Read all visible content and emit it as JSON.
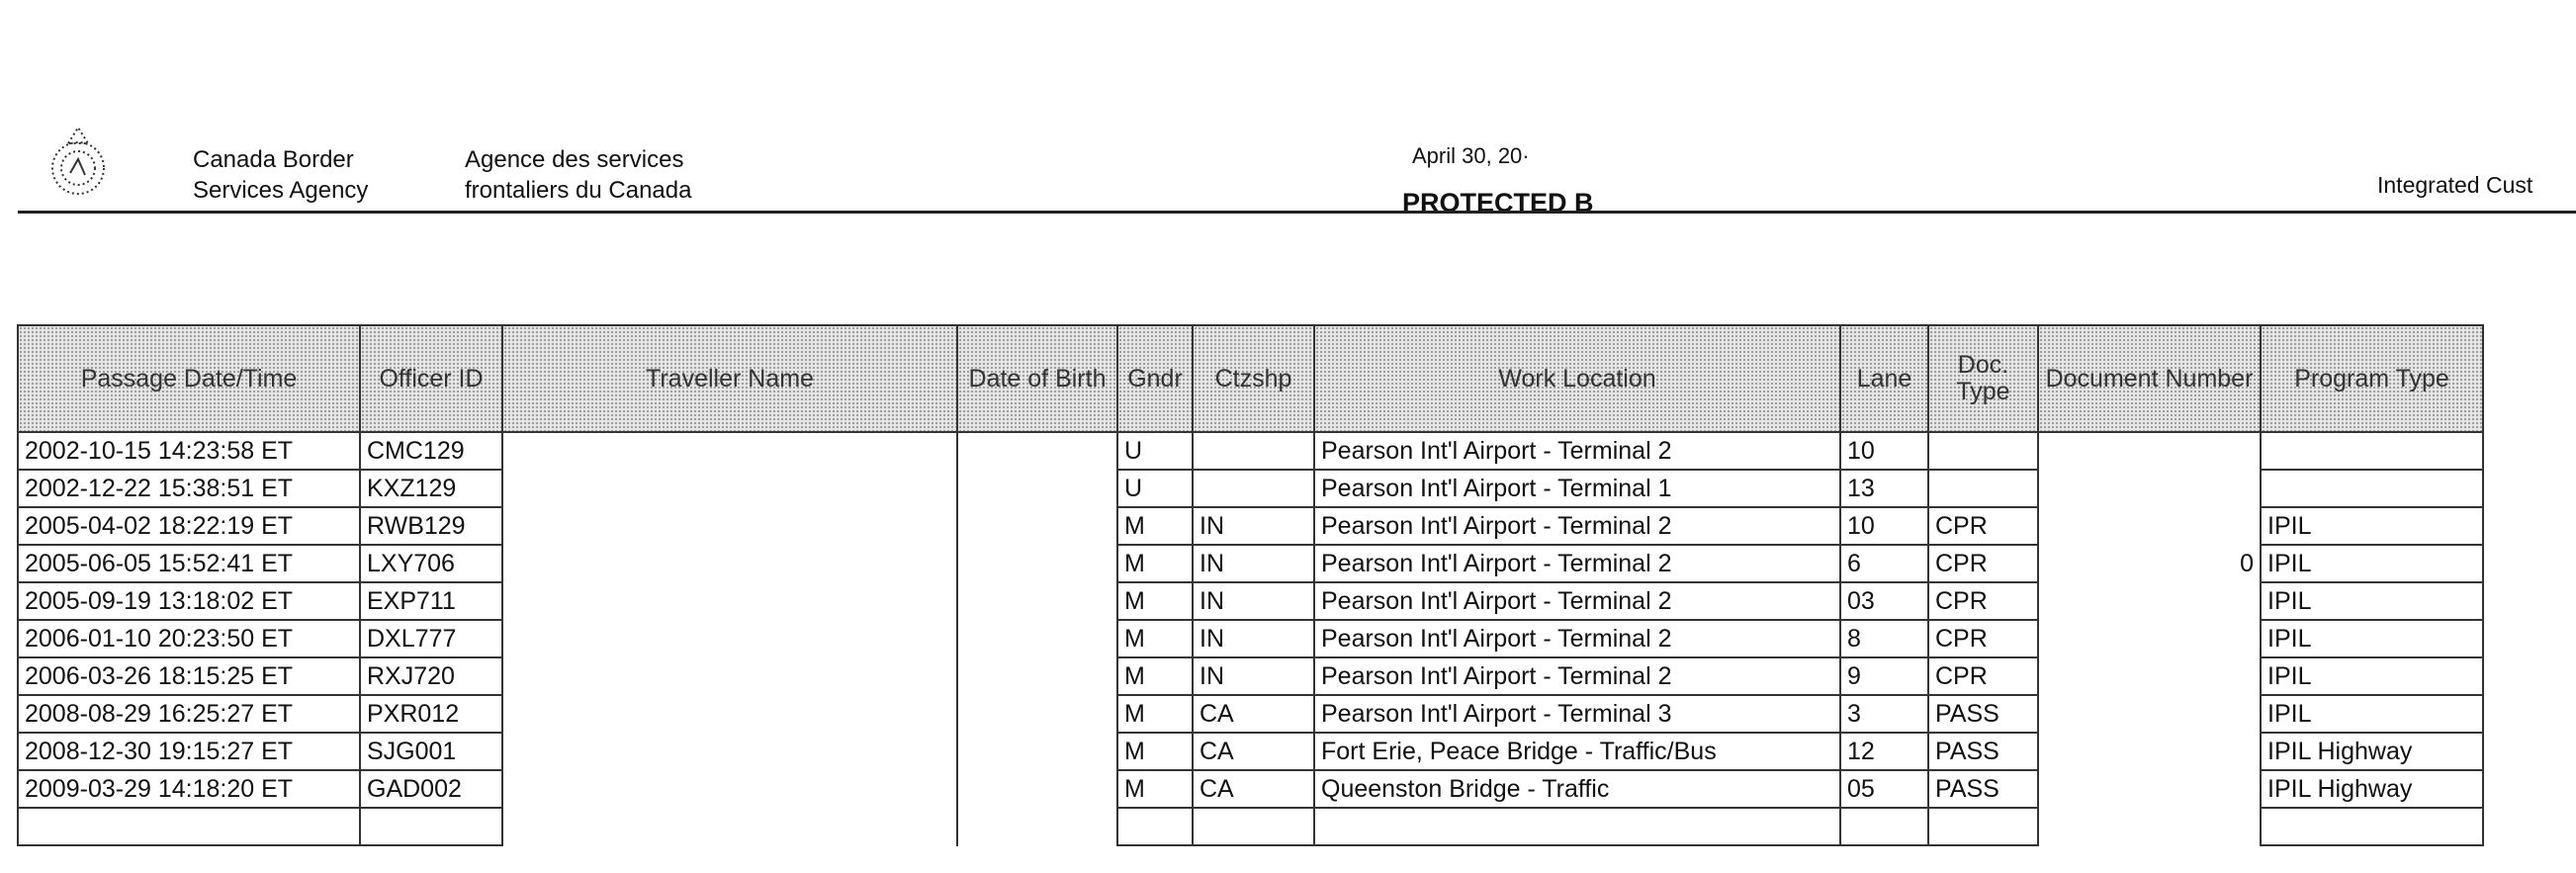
{
  "header": {
    "agency_en": [
      "Canada Border",
      "Services Agency"
    ],
    "agency_fr": [
      "Agence des services",
      "frontaliers du Canada"
    ],
    "date": "April 30, 20·",
    "classification": "PROTECTED B",
    "system_title": "Integrated Cust"
  },
  "table": {
    "columns": [
      "Passage Date/Time",
      "Officer ID",
      "Traveller Name",
      "Date of Birth",
      "Gndr",
      "Ctzshp",
      "Work Location",
      "Lane",
      "Doc. Type",
      "Document Number",
      "Program Type"
    ],
    "rows": [
      [
        "2002-10-15 14:23:58 ET",
        "CMC129",
        "",
        "",
        "U",
        "",
        "Pearson Int'l Airport - Terminal 2",
        "10",
        "",
        "",
        ""
      ],
      [
        "2002-12-22 15:38:51 ET",
        "KXZ129",
        "",
        "",
        "U",
        "",
        "Pearson Int'l Airport - Terminal 1",
        "13",
        "",
        "",
        ""
      ],
      [
        "2005-04-02 18:22:19 ET",
        "RWB129",
        "",
        "",
        "M",
        "IN",
        "Pearson Int'l Airport - Terminal 2",
        "10",
        "CPR",
        "",
        "IPIL"
      ],
      [
        "2005-06-05 15:52:41 ET",
        "LXY706",
        "",
        "",
        "M",
        "IN",
        "Pearson Int'l Airport - Terminal 2",
        "6",
        "CPR",
        "0",
        "IPIL"
      ],
      [
        "2005-09-19 13:18:02 ET",
        "EXP711",
        "",
        "",
        "M",
        "IN",
        "Pearson Int'l Airport - Terminal 2",
        "03",
        "CPR",
        "",
        "IPIL"
      ],
      [
        "2006-01-10 20:23:50 ET",
        "DXL777",
        "",
        "",
        "M",
        "IN",
        "Pearson Int'l Airport - Terminal 2",
        "8",
        "CPR",
        "",
        "IPIL"
      ],
      [
        "2006-03-26 18:15:25 ET",
        "RXJ720",
        "",
        "",
        "M",
        "IN",
        "Pearson Int'l Airport - Terminal 2",
        "9",
        "CPR",
        "",
        "IPIL"
      ],
      [
        "2008-08-29 16:25:27 ET",
        "PXR012",
        "",
        "",
        "M",
        "CA",
        "Pearson Int'l Airport - Terminal 3",
        "3",
        "PASS",
        "",
        "IPIL"
      ],
      [
        "2008-12-30 19:15:27 ET",
        "SJG001",
        "",
        "",
        "M",
        "CA",
        "Fort Erie, Peace Bridge - Traffic/Bus",
        "12",
        "PASS",
        "",
        "IPIL Highway"
      ],
      [
        "2009-03-29 14:18:20 ET",
        "GAD002",
        "",
        "",
        "M",
        "CA",
        "Queenston Bridge - Traffic",
        "05",
        "PASS",
        "",
        "IPIL Highway"
      ]
    ]
  }
}
